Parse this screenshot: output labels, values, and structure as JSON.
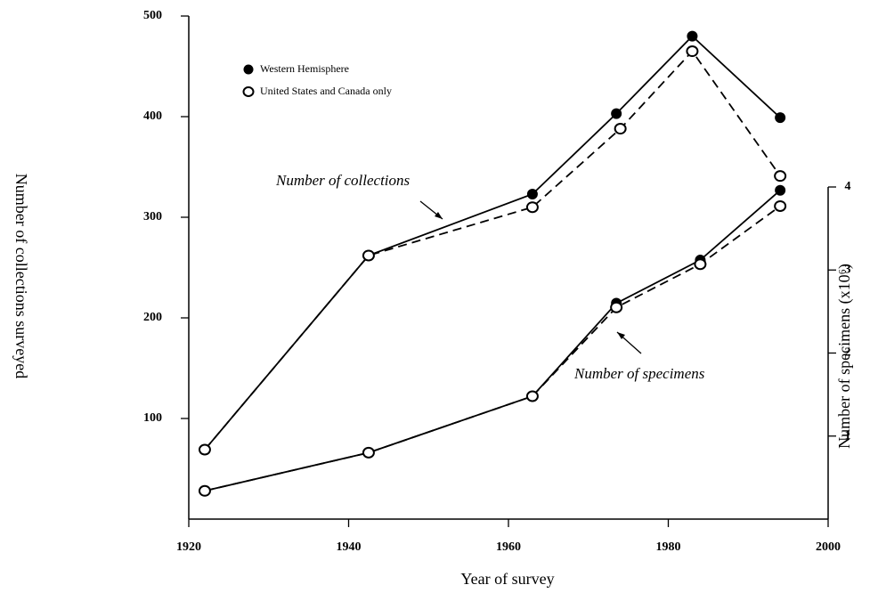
{
  "chart_data": {
    "type": "line",
    "xlabel": "Year of survey",
    "ylabel": "Number of collections surveyed",
    "y2label": "Number of specimens (x10⁶)",
    "xlim": [
      1920,
      2000
    ],
    "xticks": [
      1920,
      1940,
      1960,
      1980,
      2000
    ],
    "ylim": [
      0,
      500
    ],
    "yticks": [
      100,
      200,
      300,
      400,
      500
    ],
    "y2lim": [
      0,
      4
    ],
    "y2ticks": [
      1,
      2,
      3,
      4
    ],
    "legend": "upper left",
    "annotations": [
      "Number of collections",
      "Number of specimens"
    ],
    "series": [
      {
        "name": "Western Hemisphere",
        "marker": "filled",
        "dash": false,
        "axis": "y",
        "color": "#000000",
        "x": [
          1922,
          1942.5,
          1963,
          1973.5,
          1983,
          1994
        ],
        "values": [
          69,
          262,
          323,
          403,
          480,
          399
        ]
      },
      {
        "name": "United States and Canada only",
        "marker": "open",
        "dash": true,
        "axis": "y",
        "color": "#000000",
        "x": [
          1922,
          1942.5,
          1963,
          1974,
          1983,
          1994
        ],
        "values": [
          69,
          262,
          310,
          388,
          465,
          341
        ]
      },
      {
        "name": "Western Hemisphere",
        "marker": "filled",
        "dash": false,
        "axis": "y2",
        "color": "#000000",
        "x": [
          1922,
          1942.5,
          1963,
          1973.5,
          1984,
          1994
        ],
        "values": [
          0.34,
          0.8,
          1.48,
          2.6,
          3.12,
          3.96
        ]
      },
      {
        "name": "United States and Canada only",
        "marker": "open",
        "dash": true,
        "axis": "y2",
        "color": "#000000",
        "x": [
          1922,
          1942.5,
          1963,
          1973.5,
          1984,
          1994
        ],
        "values": [
          0.34,
          0.8,
          1.48,
          2.55,
          3.07,
          3.77
        ]
      }
    ]
  }
}
